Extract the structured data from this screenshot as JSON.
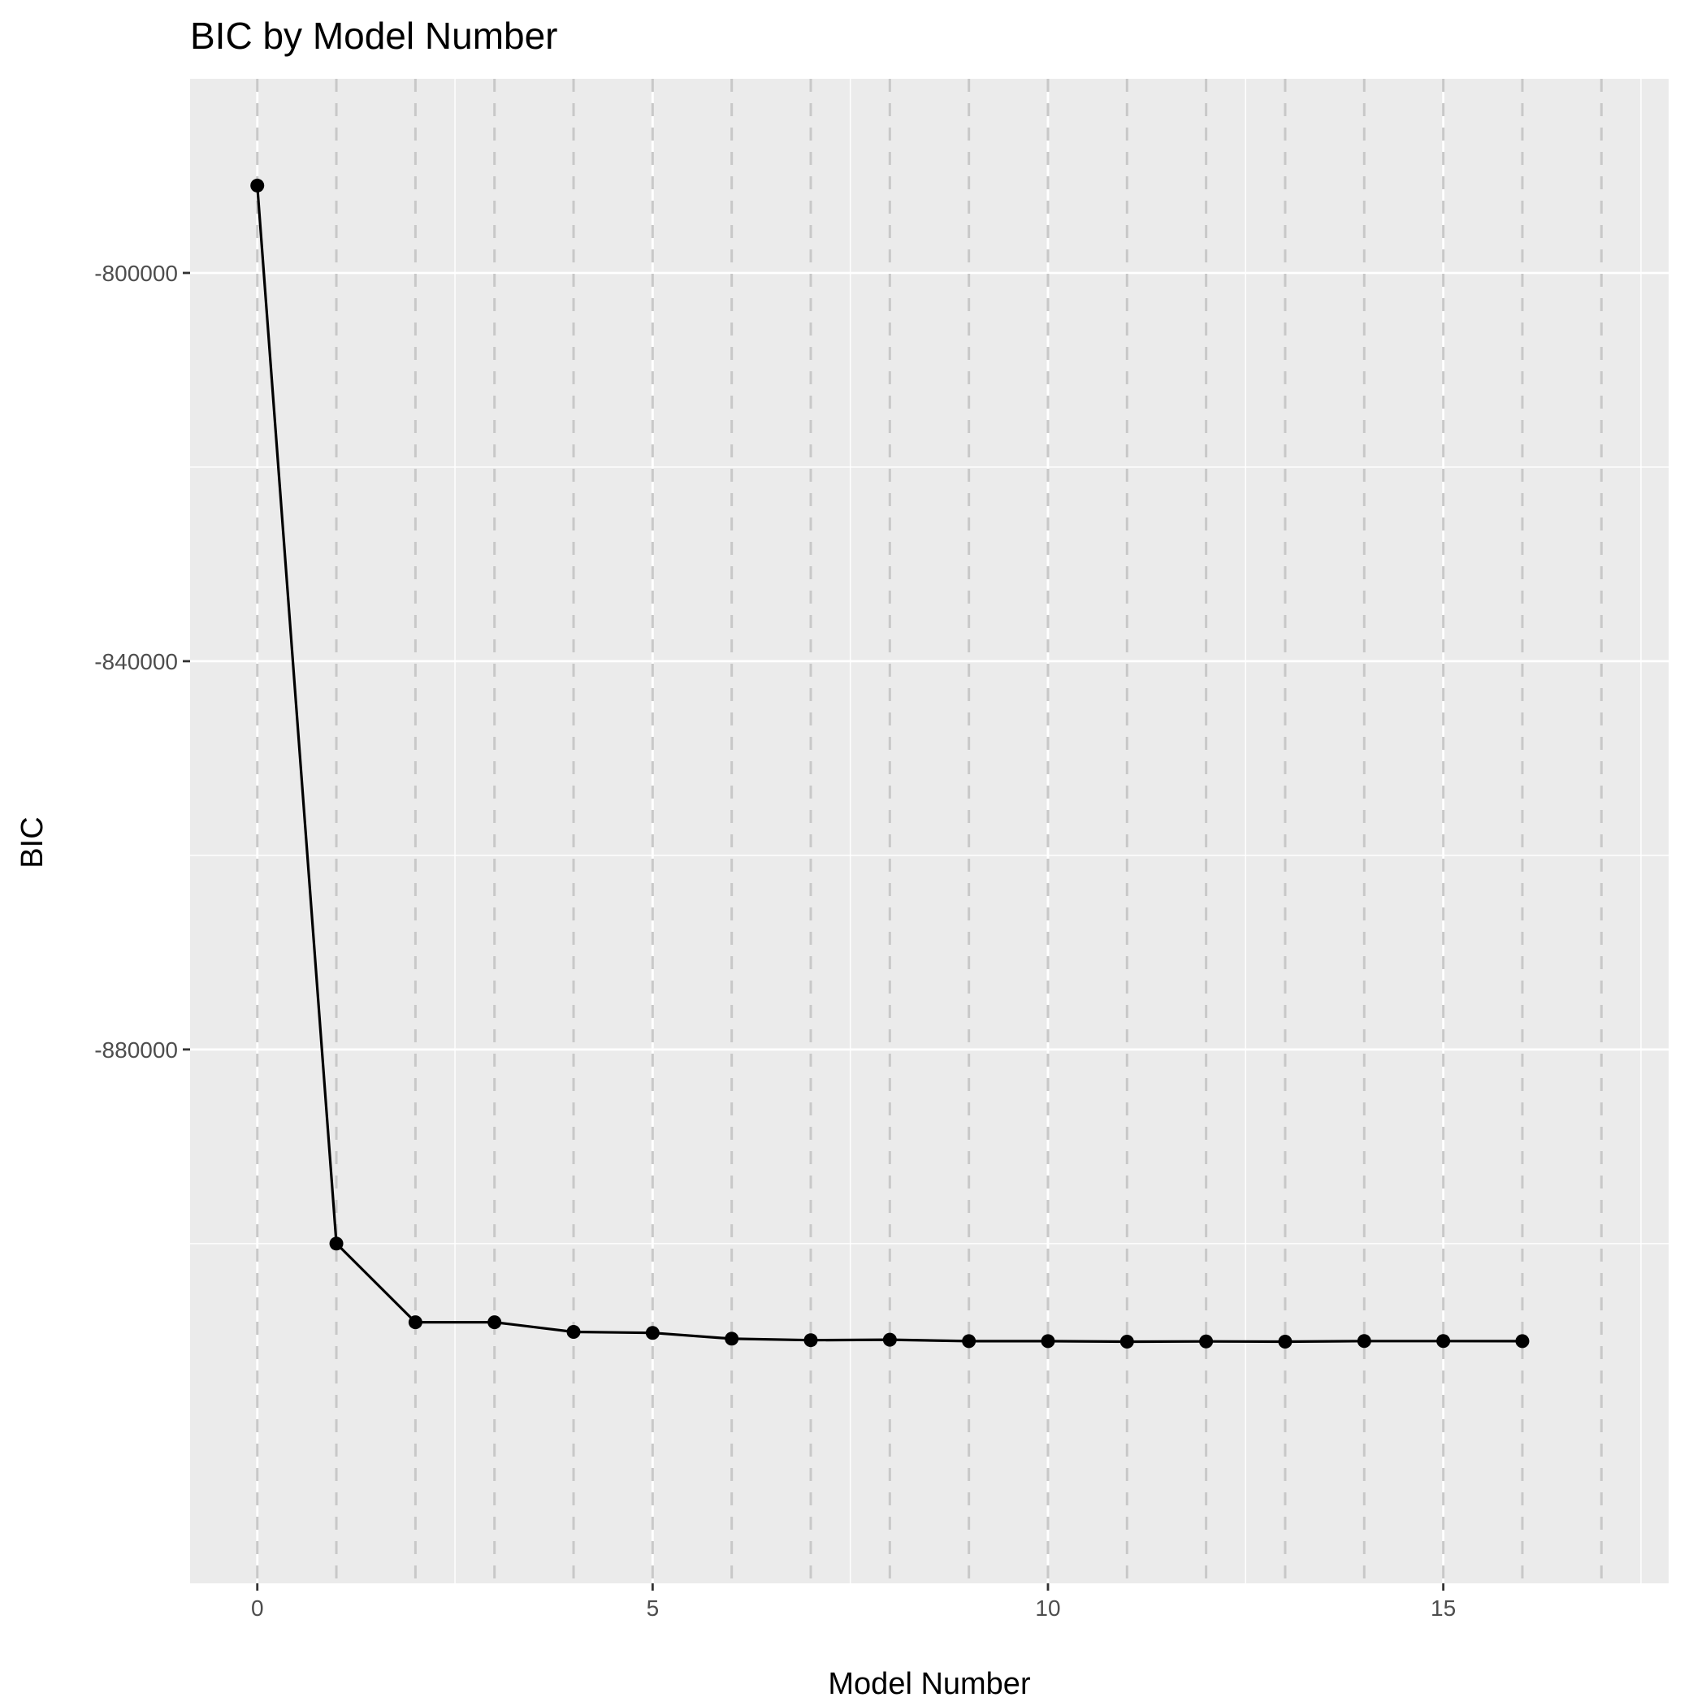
{
  "chart_data": {
    "type": "line",
    "title": "BIC by Model Number",
    "xlabel": "Model Number",
    "ylabel": "BIC",
    "xlim": [
      -0.85,
      17.85
    ],
    "ylim": [
      -935000,
      -780000
    ],
    "x_ticks": [
      0,
      5,
      10,
      15
    ],
    "x_tick_labels": [
      "0",
      "5",
      "10",
      "15"
    ],
    "y_ticks": [
      -880000,
      -840000,
      -800000
    ],
    "y_tick_labels": [
      "-880000",
      "-840000",
      "-800000"
    ],
    "grid": true,
    "dashed_vlines": [
      0,
      1,
      2,
      3,
      4,
      5,
      6,
      7,
      8,
      9,
      10,
      11,
      12,
      13,
      14,
      15,
      16,
      17
    ],
    "series": [
      {
        "x": [
          0,
          1,
          2,
          3,
          4,
          5,
          6,
          7,
          8,
          9,
          10,
          11,
          12,
          13,
          14,
          15,
          16
        ],
        "y": [
          -791000,
          -900000,
          -908100,
          -908100,
          -909100,
          -909200,
          -909800,
          -909950,
          -909900,
          -910050,
          -910050,
          -910100,
          -910080,
          -910100,
          -910040,
          -910040,
          -910050
        ]
      }
    ]
  }
}
